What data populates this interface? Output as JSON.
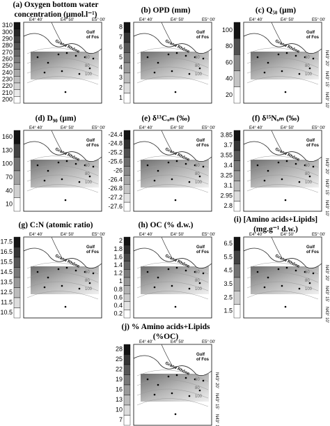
{
  "map_labels": {
    "lon": [
      "E4° 40'",
      "E4° 50'",
      "E5° 00'"
    ],
    "lat": [
      "N43° 20'",
      "N43° 15'",
      "N43° 10'"
    ],
    "river": "Grand Rhône",
    "gulf": [
      "Gulf",
      "of Fos"
    ],
    "contours": [
      "60",
      "80",
      "100"
    ]
  },
  "panels": [
    {
      "title": [
        "(a) Oxygen bottom water",
        "concentration (µmol.l⁻¹)"
      ],
      "ticks": [
        "310",
        "300",
        "290",
        "280",
        "270",
        "260",
        "250",
        "240",
        "230",
        "220",
        "210",
        "200"
      ]
    },
    {
      "title": [
        "(b) OPD (mm)"
      ],
      "ticks": [
        "8",
        "7",
        "6",
        "5",
        "4",
        "3",
        "2",
        "1"
      ]
    },
    {
      "title": [
        "(c) Q₅₀ (µm)"
      ],
      "ticks": [
        "100",
        "80",
        "60",
        "40",
        "20"
      ]
    },
    {
      "title": [
        "(d) D₉₀ (µm)"
      ],
      "ticks": [
        "160",
        "130",
        "100",
        "70",
        "40",
        "10"
      ]
    },
    {
      "title": [
        "(e) δ¹³Cₒₘ (‰)"
      ],
      "ticks": [
        "-24.4",
        "-24.8",
        "-25.2",
        "-25.6",
        "-26",
        "-26.4",
        "-26.8",
        "-27.2",
        "-27.6"
      ]
    },
    {
      "title": [
        "(f) δ¹⁵Nₒₘ (‰)"
      ],
      "ticks": [
        "3.85",
        "3.7",
        "3.55",
        "3.4",
        "3.25",
        "3.1",
        "2.95",
        "2.8"
      ]
    },
    {
      "title": [
        "(g) C:N (atomic ratio)"
      ],
      "ticks": [
        "17.5",
        "16.5",
        "15.5",
        "14.5",
        "13.5",
        "12.5",
        "11.5",
        "10.5"
      ]
    },
    {
      "title": [
        "(h) OC (% d.w.)"
      ],
      "ticks": [
        "2",
        "1.8",
        "1.6",
        "1.4",
        "1.2",
        "1",
        "0.8",
        "0.6",
        "0.4",
        "0.2"
      ]
    },
    {
      "title": [
        "(i) [Amino acids+Lipids]",
        "(mg.g⁻¹ d.w.)"
      ],
      "ticks": [
        "6.5",
        "5.5",
        "4.5",
        "3.5",
        "2.5",
        "1.5"
      ]
    },
    {
      "title": [
        "(j) % Amino acids+Lipids",
        "(%OC)"
      ],
      "ticks": [
        "28",
        "25",
        "22",
        "19",
        "16",
        "13",
        "10",
        "7"
      ]
    }
  ]
}
